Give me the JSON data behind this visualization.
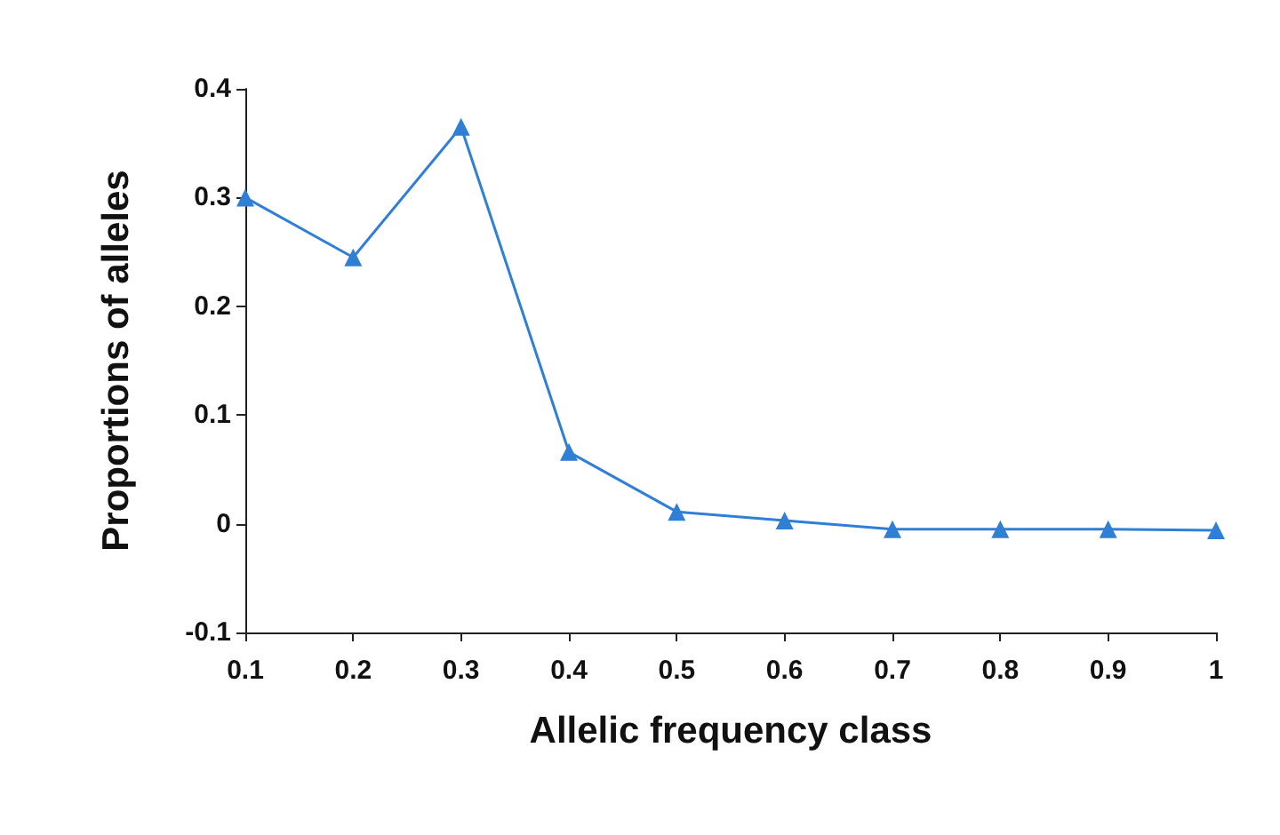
{
  "chart_data": {
    "type": "line",
    "xlabel": "Allelic frequency class",
    "ylabel": "Proportions of alleles",
    "x": [
      0.1,
      0.2,
      0.3,
      0.4,
      0.5,
      0.6,
      0.7,
      0.8,
      0.9,
      1
    ],
    "series": [
      {
        "color": "#2f7fd6",
        "values": [
          0.3,
          0.245,
          0.365,
          0.066,
          0.011,
          0.003,
          -0.005,
          -0.005,
          -0.005,
          -0.006
        ]
      }
    ],
    "xlim": [
      0.1,
      1
    ],
    "xticks": [
      0.1,
      0.2,
      0.3,
      0.4,
      0.5,
      0.6,
      0.7,
      0.8,
      0.9,
      1
    ],
    "ylim": [
      -0.1,
      0.4
    ],
    "yticks": [
      -0.1,
      0,
      0.1,
      0.2,
      0.3,
      0.4
    ],
    "marker": "triangle",
    "line_style": "solid",
    "grid": false
  }
}
